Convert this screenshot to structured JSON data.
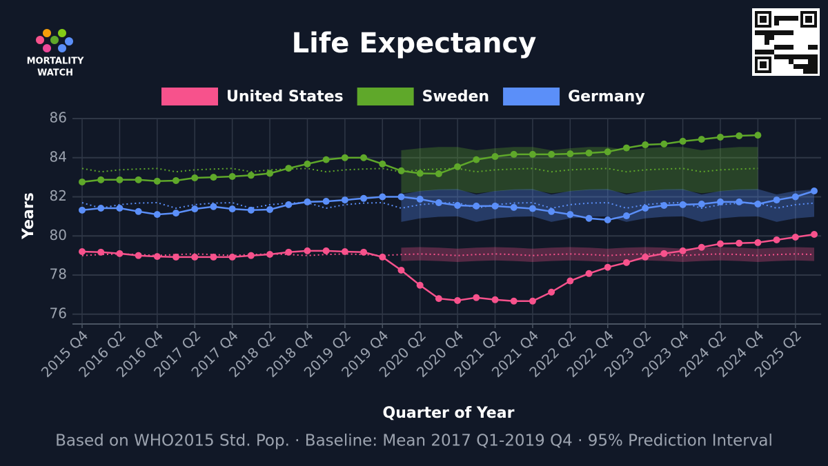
{
  "chart_data": {
    "type": "line",
    "title": "Life Expectancy",
    "logo": {
      "line1": "MORTALITY",
      "line2": "WATCH"
    },
    "x_label": "Quarter of Year",
    "y_label": "Years",
    "footnote": "Based on WHO2015 Std. Pop. · Baseline: Mean 2017 Q1-2019 Q4 · 95% Prediction Interval",
    "categories": [
      "2015 Q4",
      null,
      "2016 Q2",
      null,
      "2016 Q4",
      null,
      "2017 Q2",
      null,
      "2017 Q4",
      null,
      "2018 Q2",
      null,
      "2018 Q4",
      null,
      "2019 Q2",
      null,
      "2019 Q4",
      null,
      "2020 Q2",
      null,
      "2020 Q4",
      null,
      "2021 Q2",
      null,
      "2021 Q4",
      null,
      "2022 Q2",
      null,
      "2022 Q4",
      null,
      "2023 Q2",
      null,
      "2023 Q4",
      null,
      "2024 Q2",
      null,
      "2024 Q4",
      null,
      "2025 Q2",
      null
    ],
    "ylim": [
      75.5,
      86
    ],
    "yticks": [
      76,
      78,
      80,
      82,
      84,
      86
    ],
    "grid": true,
    "series": [
      {
        "name": "United States",
        "color": "#f7528c",
        "values": [
          79.2,
          79.17,
          79.1,
          79.0,
          78.95,
          78.92,
          78.92,
          78.92,
          78.92,
          79.0,
          79.06,
          79.17,
          79.24,
          79.24,
          79.2,
          79.17,
          78.92,
          78.25,
          77.48,
          76.8,
          76.7,
          76.85,
          76.74,
          76.67,
          76.67,
          77.13,
          77.7,
          78.08,
          78.4,
          78.64,
          78.92,
          79.1,
          79.24,
          79.42,
          79.6,
          79.63,
          79.66,
          79.8,
          79.94,
          80.08
        ],
        "baseline": [
          79.0,
          79.05,
          79.08,
          79.05,
          79.0,
          79.05,
          79.08,
          79.05,
          79.0,
          79.05,
          79.08,
          79.05,
          79.0,
          79.05,
          79.08,
          79.05,
          79.0,
          79.05,
          79.08,
          79.05,
          79.0,
          79.05,
          79.08,
          79.05,
          79.0,
          79.05,
          79.08,
          79.05,
          79.0,
          79.05,
          79.08,
          79.05,
          79.0,
          79.05,
          79.08,
          79.05,
          79.0,
          79.05,
          79.08,
          79.05
        ],
        "pi_upper": [
          null,
          null,
          null,
          null,
          null,
          null,
          null,
          null,
          null,
          null,
          null,
          null,
          null,
          null,
          null,
          null,
          null,
          79.4,
          79.43,
          79.4,
          79.35,
          79.4,
          79.43,
          79.4,
          79.35,
          79.4,
          79.43,
          79.4,
          79.35,
          79.4,
          79.43,
          79.4,
          79.35,
          79.4,
          79.43,
          79.4,
          79.35,
          79.4,
          79.43,
          79.4
        ],
        "pi_lower": [
          null,
          null,
          null,
          null,
          null,
          null,
          null,
          null,
          null,
          null,
          null,
          null,
          null,
          null,
          null,
          null,
          null,
          78.72,
          78.75,
          78.72,
          78.67,
          78.72,
          78.75,
          78.72,
          78.67,
          78.72,
          78.75,
          78.72,
          78.67,
          78.72,
          78.75,
          78.72,
          78.67,
          78.72,
          78.75,
          78.72,
          78.67,
          78.72,
          78.75,
          78.72
        ]
      },
      {
        "name": "Sweden",
        "color": "#5fa82a",
        "values": [
          82.76,
          82.87,
          82.87,
          82.87,
          82.8,
          82.83,
          82.97,
          83.0,
          83.04,
          83.1,
          83.2,
          83.46,
          83.68,
          83.9,
          84.0,
          84.0,
          83.68,
          83.33,
          83.2,
          83.18,
          83.54,
          83.9,
          84.06,
          84.17,
          84.17,
          84.17,
          84.2,
          84.24,
          84.3,
          84.5,
          84.66,
          84.7,
          84.84,
          84.94,
          85.05,
          85.12,
          85.15,
          null,
          null,
          null
        ],
        "baseline": [
          83.45,
          83.28,
          83.38,
          83.42,
          83.45,
          83.28,
          83.38,
          83.42,
          83.45,
          83.28,
          83.38,
          83.42,
          83.45,
          83.28,
          83.38,
          83.42,
          83.45,
          83.28,
          83.38,
          83.42,
          83.45,
          83.28,
          83.38,
          83.42,
          83.45,
          83.28,
          83.38,
          83.42,
          83.45,
          83.28,
          83.38,
          83.42,
          83.45,
          83.28,
          83.38,
          83.42,
          83.45,
          null,
          null,
          null
        ],
        "pi_upper": [
          null,
          null,
          null,
          null,
          null,
          null,
          null,
          null,
          null,
          null,
          null,
          null,
          null,
          null,
          null,
          null,
          null,
          84.38,
          84.48,
          84.55,
          84.55,
          84.38,
          84.48,
          84.55,
          84.55,
          84.38,
          84.48,
          84.55,
          84.55,
          84.38,
          84.48,
          84.55,
          84.55,
          84.38,
          84.48,
          84.55,
          84.55,
          null,
          null,
          null
        ],
        "pi_lower": [
          null,
          null,
          null,
          null,
          null,
          null,
          null,
          null,
          null,
          null,
          null,
          null,
          null,
          null,
          null,
          null,
          null,
          82.18,
          82.28,
          82.35,
          82.35,
          82.18,
          82.28,
          82.35,
          82.35,
          82.18,
          82.28,
          82.35,
          82.35,
          82.18,
          82.28,
          82.35,
          82.35,
          82.18,
          82.28,
          82.35,
          82.35,
          null,
          null,
          null
        ]
      },
      {
        "name": "Germany",
        "color": "#5b8ff9",
        "values": [
          81.32,
          81.42,
          81.42,
          81.25,
          81.1,
          81.17,
          81.38,
          81.5,
          81.38,
          81.32,
          81.35,
          81.6,
          81.74,
          81.77,
          81.84,
          81.92,
          82.0,
          82.0,
          81.88,
          81.7,
          81.56,
          81.53,
          81.53,
          81.46,
          81.4,
          81.25,
          81.1,
          80.9,
          80.82,
          81.03,
          81.42,
          81.56,
          81.6,
          81.63,
          81.74,
          81.74,
          81.63,
          81.84,
          82.0,
          82.3
        ],
        "baseline": [
          81.7,
          81.42,
          81.6,
          81.68,
          81.7,
          81.42,
          81.6,
          81.68,
          81.7,
          81.42,
          81.6,
          81.68,
          81.7,
          81.42,
          81.6,
          81.68,
          81.7,
          81.42,
          81.6,
          81.68,
          81.7,
          81.42,
          81.6,
          81.68,
          81.7,
          81.42,
          81.6,
          81.68,
          81.7,
          81.42,
          81.6,
          81.68,
          81.7,
          81.42,
          81.6,
          81.68,
          81.7,
          81.42,
          81.6,
          81.68
        ],
        "pi_upper": [
          null,
          null,
          null,
          null,
          null,
          null,
          null,
          null,
          null,
          null,
          null,
          null,
          null,
          null,
          null,
          null,
          null,
          82.12,
          82.3,
          82.38,
          82.4,
          82.12,
          82.3,
          82.38,
          82.4,
          82.12,
          82.3,
          82.38,
          82.4,
          82.12,
          82.3,
          82.38,
          82.4,
          82.12,
          82.3,
          82.38,
          82.4,
          82.12,
          82.3,
          82.38
        ],
        "pi_lower": [
          null,
          null,
          null,
          null,
          null,
          null,
          null,
          null,
          null,
          null,
          null,
          null,
          null,
          null,
          null,
          null,
          null,
          80.72,
          80.9,
          80.98,
          81.0,
          80.72,
          80.9,
          80.98,
          81.0,
          80.72,
          80.9,
          80.98,
          81.0,
          80.72,
          80.9,
          80.98,
          81.0,
          80.72,
          80.9,
          80.98,
          81.0,
          80.72,
          80.9,
          80.98
        ]
      }
    ]
  }
}
